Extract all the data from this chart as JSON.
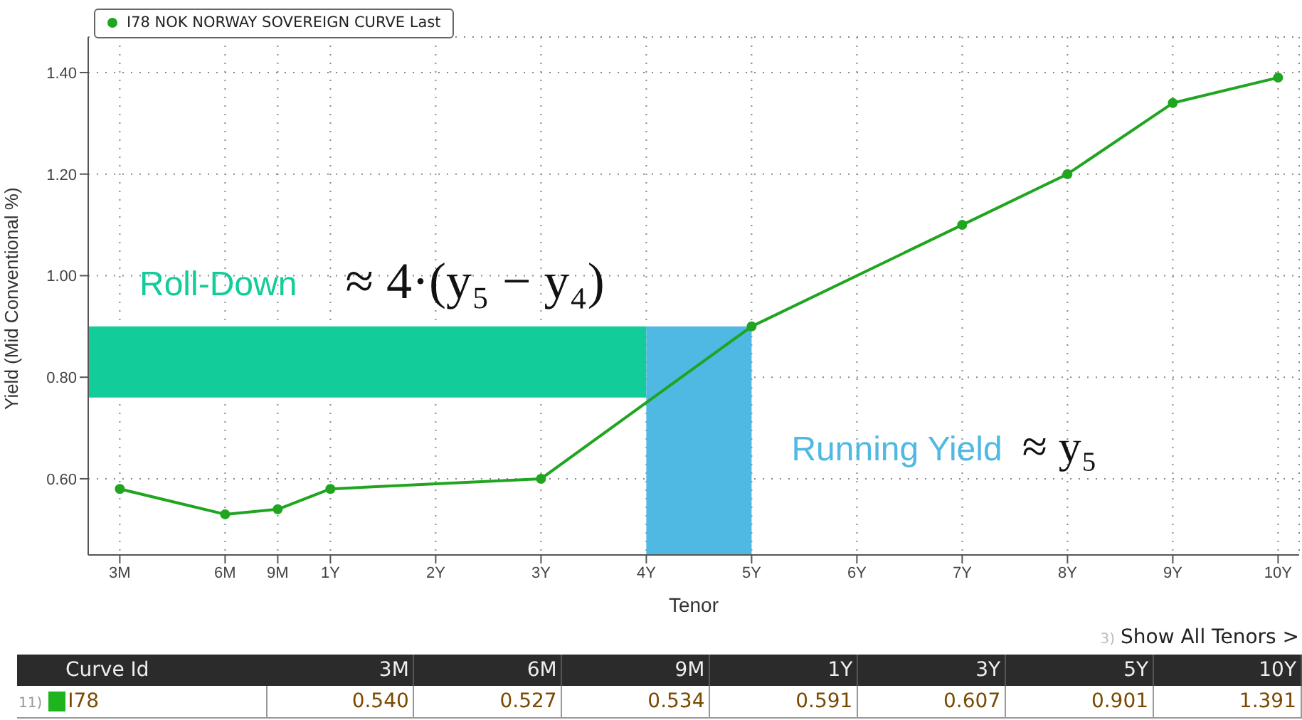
{
  "chart_data": [
    {
      "type": "line",
      "xlabel": "Tenor",
      "ylabel": "Yield (Mid Conventional %)",
      "categories": [
        "3M",
        null,
        "6M",
        "9M",
        "1Y",
        null,
        "2Y",
        null,
        "3Y",
        null,
        "4Y",
        null,
        "5Y",
        null,
        "6Y",
        null,
        "7Y",
        null,
        "8Y",
        null,
        "9Y",
        null,
        "10Y"
      ],
      "series": [
        {
          "name": "I78 NOK NORWAY SOVEREIGN CURVE Last",
          "color": "#1fa51f",
          "values": [
            0.58,
            null,
            0.53,
            0.54,
            0.58,
            null,
            null,
            null,
            0.6,
            null,
            null,
            null,
            0.9,
            null,
            null,
            null,
            1.1,
            null,
            1.2,
            null,
            1.34,
            null,
            1.39
          ]
        }
      ],
      "ylim": [
        0.45,
        1.47
      ],
      "yticks": [
        {
          "value": 0.6,
          "label": "0.60"
        },
        {
          "value": 0.8,
          "label": "0.80"
        },
        {
          "value": 1.0,
          "label": "1.00"
        },
        {
          "value": 1.2,
          "label": "1.20"
        },
        {
          "value": 1.4,
          "label": "1.40"
        }
      ],
      "bands": [
        {
          "axis": "y",
          "from": 0.76,
          "to": 0.9,
          "label": "Roll-Down",
          "color": "#12cc99"
        },
        {
          "axis": "x",
          "from": "4Y",
          "to": "5Y",
          "label": "Running Yield",
          "color": "#4fb8e3"
        }
      ],
      "annotations": [
        "≈ 4·(y₅ − y₄)",
        "≈ y₅"
      ],
      "grid": true,
      "legend": "top left",
      "marker": "circle"
    },
    {
      "type": "other",
      "categories": [
        "3M",
        "6M",
        "9M",
        "1Y",
        "3Y",
        "5Y",
        "10Y"
      ],
      "series": [
        {
          "name": "I78",
          "color": "#1db41d",
          "values": [
            0.54,
            0.527,
            0.534,
            0.591,
            0.607,
            0.901,
            1.391
          ],
          "value_labels": [
            "0.540",
            "0.527",
            "0.534",
            "0.591",
            "0.607",
            "0.901",
            "1.391"
          ]
        }
      ],
      "legend_title": "Curve Id",
      "annotations": [
        "3)",
        "Show All Tenors >",
        "11)"
      ]
    }
  ]
}
